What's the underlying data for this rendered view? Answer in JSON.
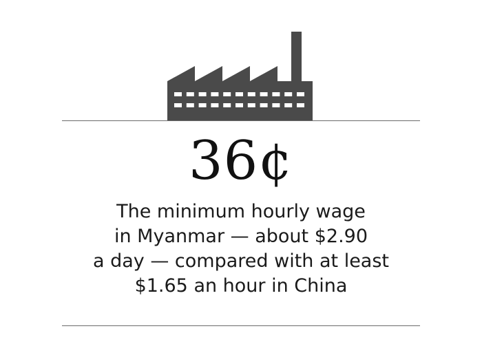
{
  "figure": {
    "icon": "factory-icon",
    "stat": "36¢",
    "caption_lines": [
      "The minimum hourly wage",
      "in Myanmar — about $2.90",
      "a day — compared with at least",
      "$1.65 an hour in China"
    ],
    "colors": {
      "icon": "#4a4a4a",
      "rule": "#6a6a6a",
      "text": "#111111",
      "background": "#ffffff"
    }
  }
}
